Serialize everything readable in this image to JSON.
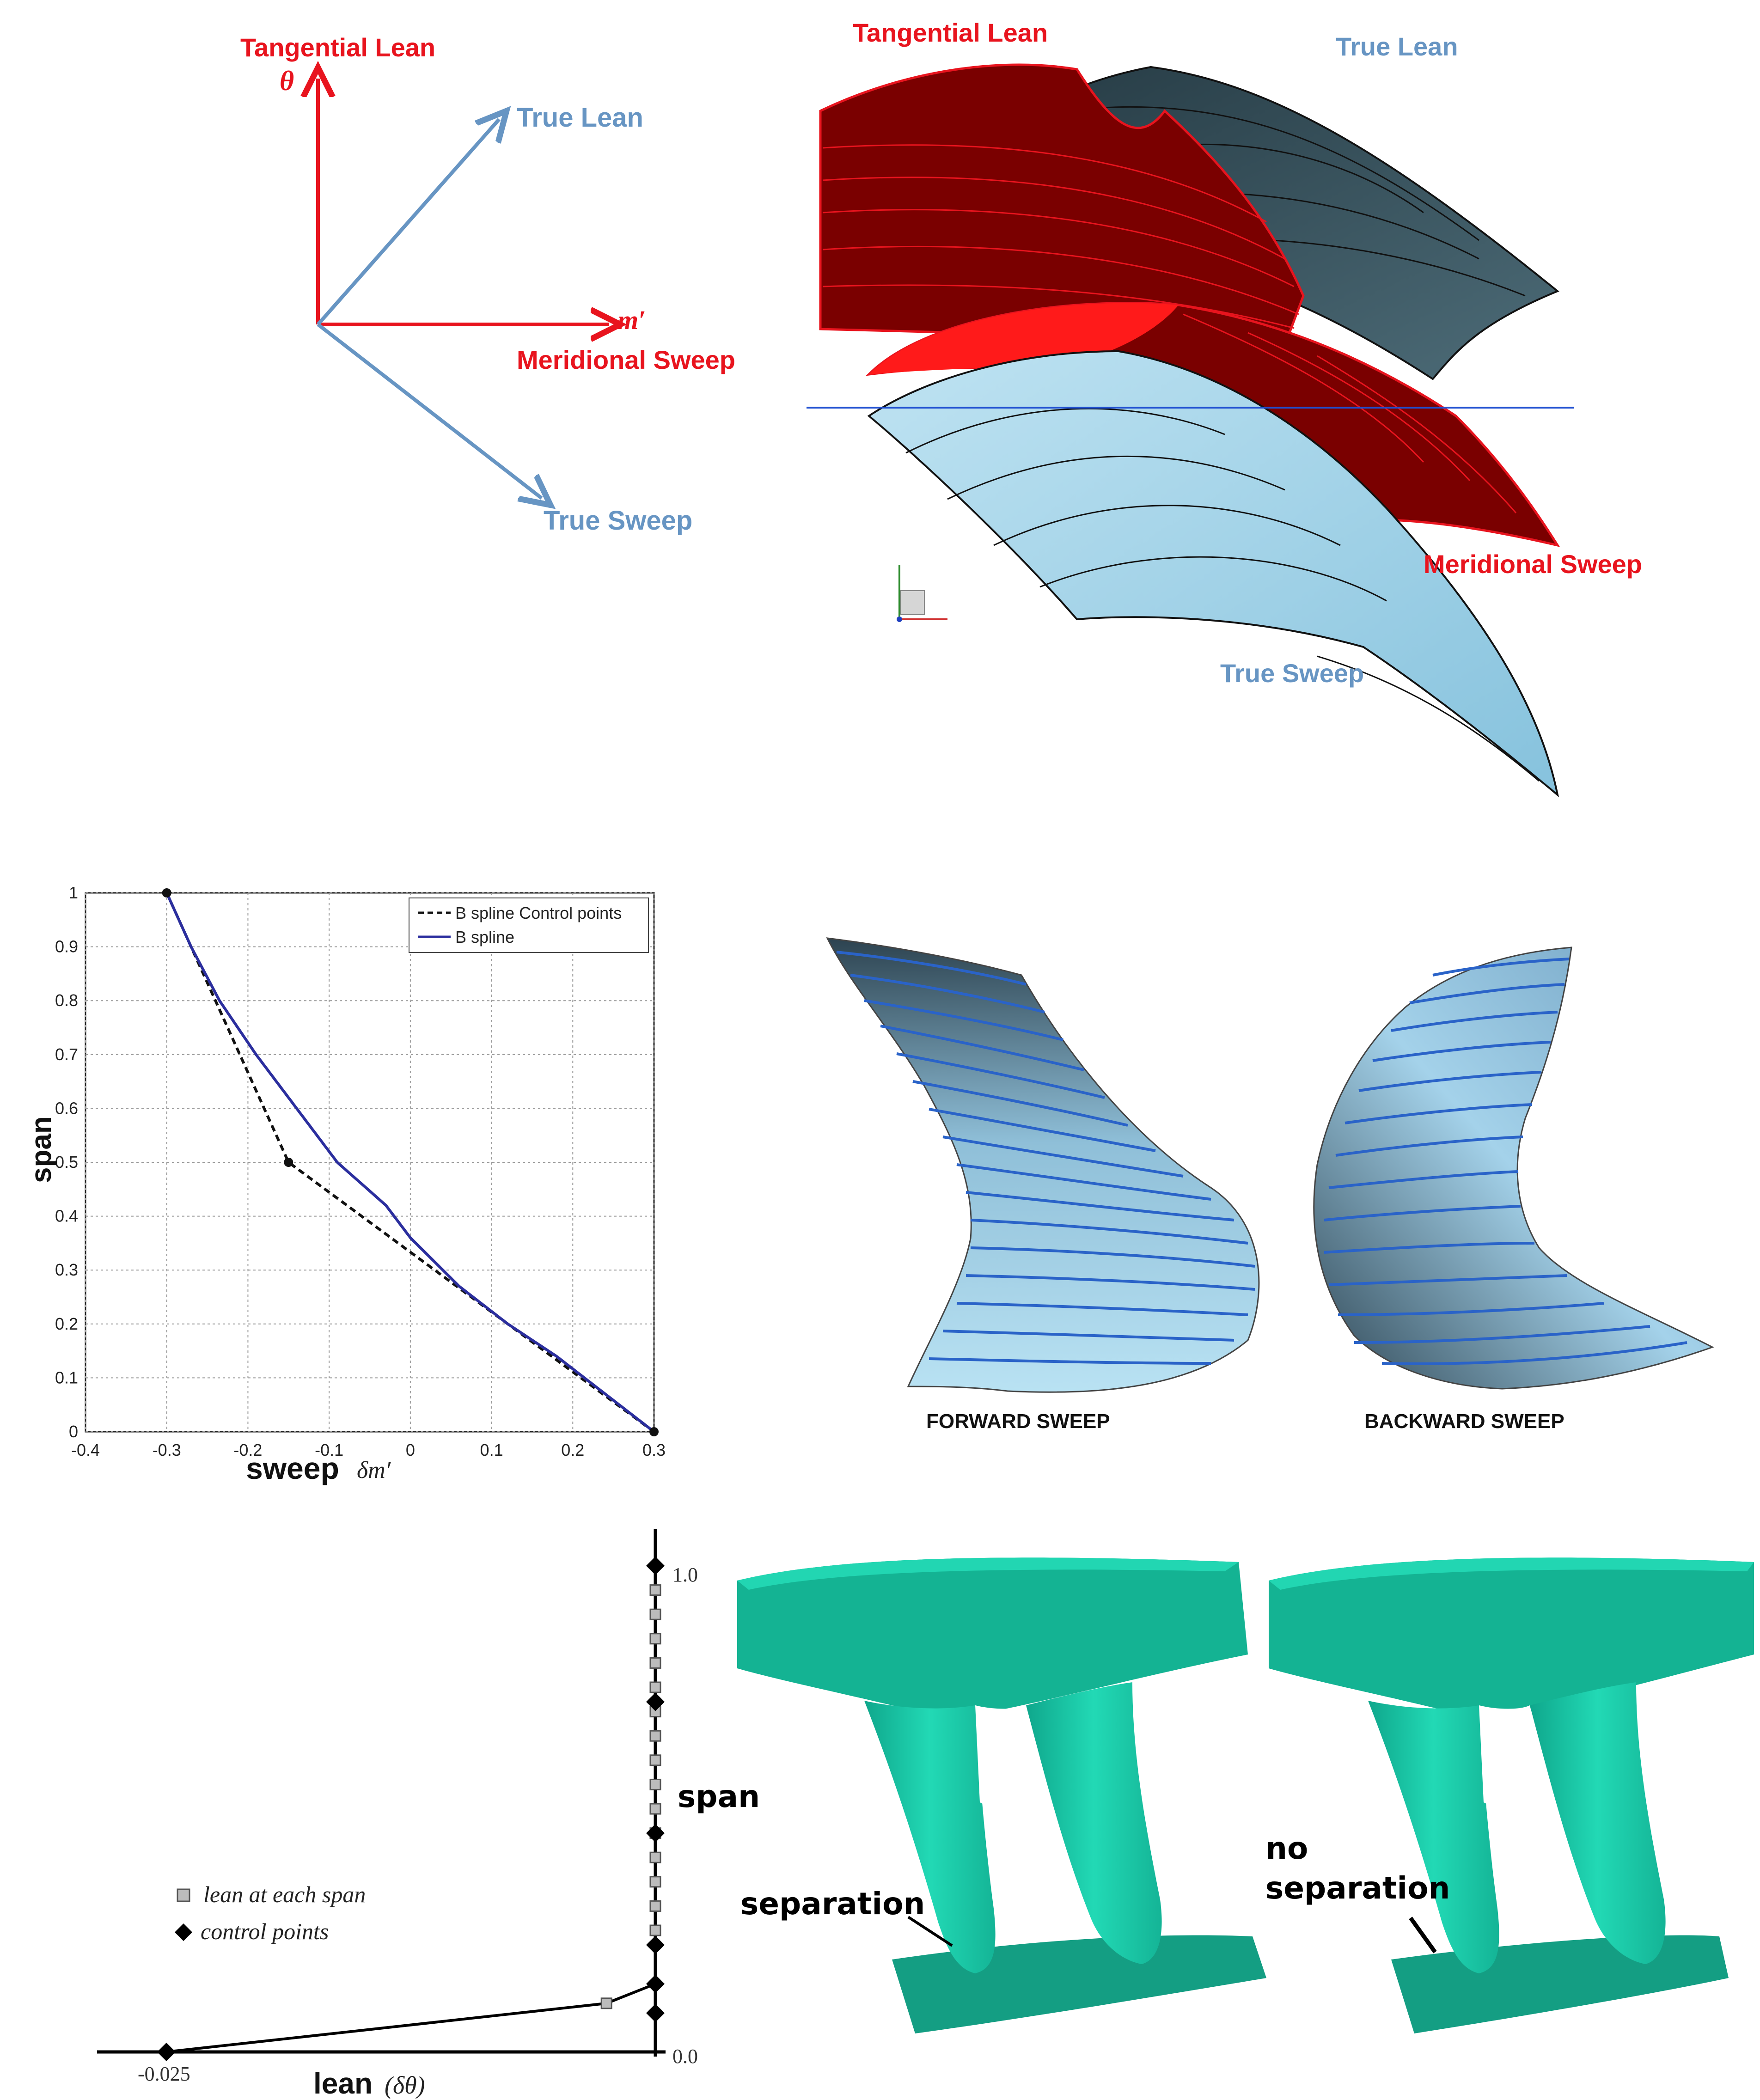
{
  "diagram": {
    "vector_labels": {
      "tangential_lean": "Tangential Lean",
      "theta": "θ",
      "true_lean": "True Lean",
      "m_prime": "m′",
      "meridional_sweep": "Meridional Sweep",
      "true_sweep": "True Sweep"
    },
    "blade_labels": {
      "tangential_lean": "Tangential Lean",
      "true_lean": "True Lean",
      "meridional_sweep": "Meridional Sweep",
      "true_sweep": "True Sweep"
    },
    "colors": {
      "red": "#e8141e",
      "blue": "#6795c3",
      "dark_red": "#7a0000",
      "dark_slate": "#34505a",
      "light_blue": "#9fd3e8",
      "teal": "#1ec8a6"
    }
  },
  "sweep_views": {
    "forward": "FORWARD SWEEP",
    "backward": "BACKWARD SWEEP"
  },
  "separation_views": {
    "left": "separation",
    "right_line1": "no",
    "right_line2": "separation"
  },
  "chart_data": [
    {
      "type": "line",
      "xlabel": "sweep",
      "xlabel_symbol": "δm′",
      "ylabel": "span",
      "xlim": [
        -0.4,
        0.3
      ],
      "ylim": [
        0,
        1
      ],
      "xticks": [
        "-0.4",
        "-0.3",
        "-0.2",
        "-0.1",
        "0",
        "0.1",
        "0.2",
        "0.3"
      ],
      "yticks": [
        "0",
        "0.1",
        "0.2",
        "0.3",
        "0.4",
        "0.5",
        "0.6",
        "0.7",
        "0.8",
        "0.9",
        "1"
      ],
      "grid": true,
      "legend_position": "top-right",
      "series": [
        {
          "name": "B spline Control points",
          "style": "dashed",
          "color": "#111111",
          "points": [
            [
              -0.3,
              1.0
            ],
            [
              -0.15,
              0.5
            ],
            [
              0.3,
              0.0
            ]
          ]
        },
        {
          "name": "B spline",
          "style": "solid",
          "color": "#2b2e9e",
          "points": [
            [
              -0.3,
              1.0
            ],
            [
              -0.27,
              0.9
            ],
            [
              -0.235,
              0.8
            ],
            [
              -0.19,
              0.7
            ],
            [
              -0.14,
              0.6
            ],
            [
              -0.09,
              0.5
            ],
            [
              -0.03,
              0.42
            ],
            [
              0.0,
              0.36
            ],
            [
              0.06,
              0.27
            ],
            [
              0.12,
              0.2
            ],
            [
              0.18,
              0.14
            ],
            [
              0.24,
              0.07
            ],
            [
              0.3,
              0.0
            ]
          ]
        }
      ]
    },
    {
      "type": "line",
      "xlabel": "lean",
      "xlabel_symbol": "(δθ)",
      "ylabel": "span",
      "xlim": [
        -0.025,
        0.0
      ],
      "ylim": [
        0,
        1
      ],
      "xticks": [
        "-0.025",
        "0.0"
      ],
      "yticks": [
        "0.0",
        "1.0"
      ],
      "legend_position": "left",
      "series": [
        {
          "name": "lean at each span",
          "marker": "square",
          "points": [
            [
              -0.0025,
              0.1
            ],
            [
              0.0,
              0.25
            ],
            [
              0.0,
              0.3
            ],
            [
              0.0,
              0.35
            ],
            [
              0.0,
              0.4
            ],
            [
              0.0,
              0.45
            ],
            [
              0.0,
              0.5
            ],
            [
              0.0,
              0.55
            ],
            [
              0.0,
              0.6
            ],
            [
              0.0,
              0.65
            ],
            [
              0.0,
              0.7
            ],
            [
              0.0,
              0.75
            ],
            [
              0.0,
              0.8
            ],
            [
              0.0,
              0.85
            ],
            [
              0.0,
              0.9
            ],
            [
              0.0,
              0.95
            ]
          ]
        },
        {
          "name": "control points",
          "marker": "diamond",
          "points": [
            [
              -0.025,
              0.0
            ],
            [
              0.0,
              0.08
            ],
            [
              0.0,
              0.14
            ],
            [
              0.0,
              0.22
            ],
            [
              0.0,
              0.45
            ],
            [
              0.0,
              0.72
            ],
            [
              0.0,
              1.0
            ]
          ]
        }
      ]
    }
  ]
}
